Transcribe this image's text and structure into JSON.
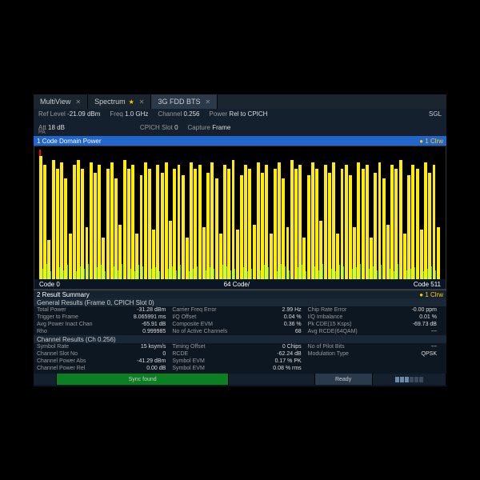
{
  "tabs": [
    {
      "label": "MultiView",
      "star": false,
      "close": true
    },
    {
      "label": "Spectrum",
      "star": true,
      "close": true
    },
    {
      "label": "3G FDD BTS",
      "star": false,
      "close": true,
      "active": true
    }
  ],
  "params": {
    "ref_level_lbl": "Ref Level",
    "ref_level_val": "-21.09 dBm",
    "freq_lbl": "Freq",
    "freq_val": "1.0 GHz",
    "channel_lbl": "Channel",
    "channel_val": "0.256",
    "power_lbl": "Power",
    "power_val": "Rel to CPICH",
    "att_lbl": "Att",
    "att_val": "18 dB",
    "cpich_lbl": "CPICH Slot",
    "cpich_val": "0",
    "capture_lbl": "Capture",
    "capture_val": "Frame",
    "sgl": "SGL",
    "pa": "PA"
  },
  "chart": {
    "title": "1 Code Domain Power",
    "marker": "● 1 Clrw",
    "x_left": "Code 0",
    "x_mid": "64 Code/",
    "x_right": "Code 511",
    "bar_color": "#ffee00",
    "noise_color": "#00cccc",
    "bars": [
      95,
      88,
      30,
      92,
      85,
      90,
      78,
      35,
      88,
      92,
      85,
      40,
      90,
      82,
      88,
      32,
      85,
      90,
      78,
      42,
      92,
      85,
      88,
      35,
      80,
      90,
      85,
      38,
      88,
      82,
      90,
      45,
      85,
      88,
      80,
      32,
      90,
      85,
      88,
      40,
      82,
      90,
      78,
      35,
      88,
      85,
      92,
      38,
      80,
      88,
      85,
      42,
      90,
      82,
      88,
      35,
      85,
      90,
      78,
      40,
      92,
      85,
      88,
      32,
      80,
      90,
      85,
      45,
      88,
      82,
      90,
      35,
      85,
      88,
      80,
      40,
      90,
      85,
      88,
      32,
      82,
      90,
      78,
      42,
      88,
      85,
      92,
      35,
      80,
      88,
      85,
      38,
      90,
      82,
      88,
      40
    ],
    "noise": [
      8,
      12,
      6,
      10,
      9,
      7,
      11,
      8,
      6,
      10,
      8,
      12,
      7,
      9,
      11,
      6,
      8,
      10,
      7,
      12,
      9,
      8,
      6,
      11,
      10,
      7,
      8,
      9,
      6,
      12,
      8,
      10,
      7,
      11,
      9,
      6,
      8,
      10,
      12,
      7,
      9,
      8,
      6,
      11,
      10,
      7,
      8,
      12,
      9,
      6,
      8,
      10,
      7,
      11,
      9,
      8,
      6,
      12,
      10,
      7,
      8,
      9,
      11,
      6,
      8,
      10,
      7,
      12,
      9,
      8,
      6,
      11,
      10,
      7,
      8,
      9,
      12,
      6,
      8,
      10,
      7,
      11,
      9,
      8,
      6,
      12,
      10,
      7,
      8,
      9,
      11,
      6,
      8,
      10,
      7,
      12
    ]
  },
  "results": {
    "summary_title": "2 Result Summary",
    "summary_marker": "● 1 Clrw",
    "general_title": "General Results (Frame 0, CPICH Slot 0)",
    "channel_title": "Channel Results (Ch 0.256)",
    "general_rows": [
      [
        {
          "l": "Total Power",
          "v": "-31.28 dBm"
        },
        {
          "l": "Carrier Freq Error",
          "v": "2.99 Hz"
        },
        {
          "l": "Chip Rate Error",
          "v": "-0.00 ppm"
        }
      ],
      [
        {
          "l": "Trigger to Frame",
          "v": "8.065991 ms"
        },
        {
          "l": "I/Q Offset",
          "v": "0.04 %"
        },
        {
          "l": "I/Q Imbalance",
          "v": "0.01 %"
        }
      ],
      [
        {
          "l": "Avg Power Inact Chan",
          "v": "-65.91 dB"
        },
        {
          "l": "Composite EVM",
          "v": "0.36 %"
        },
        {
          "l": "Pk CDE(15 Ksps)",
          "v": "-69.73 dB"
        }
      ],
      [
        {
          "l": "Rho",
          "v": "0.999985"
        },
        {
          "l": "No of Active Channels",
          "v": "68"
        },
        {
          "l": "Avg RCDE(64QAM)",
          "v": "---"
        }
      ]
    ],
    "channel_rows": [
      [
        {
          "l": "Symbol Rate",
          "v": "15 ksym/s"
        },
        {
          "l": "Timing Offset",
          "v": "0 Chips"
        },
        {
          "l": "No of Pilot Bits",
          "v": "---"
        }
      ],
      [
        {
          "l": "Channel Slot No",
          "v": "0"
        },
        {
          "l": "RCDE",
          "v": "-62.24 dB"
        },
        {
          "l": "Modulation Type",
          "v": "QPSK"
        }
      ],
      [
        {
          "l": "Channel Power Abs",
          "v": "-41.29 dBm"
        },
        {
          "l": "Symbol EVM",
          "v": "0.17 % PK"
        },
        {
          "l": "",
          "v": ""
        }
      ],
      [
        {
          "l": "Channel Power Rel",
          "v": "0.00 dB"
        },
        {
          "l": "Symbol EVM",
          "v": "0.08 % rms"
        },
        {
          "l": "",
          "v": ""
        }
      ]
    ]
  },
  "statusbar": {
    "sync": "Sync found",
    "ready": "Ready"
  }
}
